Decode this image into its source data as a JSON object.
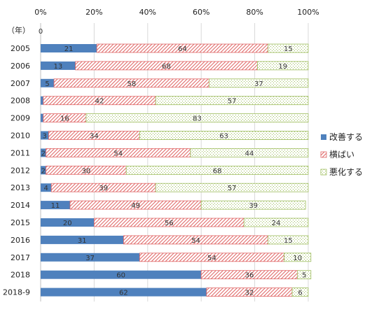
{
  "chart_data": {
    "type": "bar",
    "orientation": "horizontal",
    "stacked": "percent",
    "y_axis_header": "（年）",
    "x_tick_labels": [
      "0%",
      "20%",
      "40%",
      "60%",
      "80%",
      "100%"
    ],
    "xlim": [
      0,
      100
    ],
    "header_value": "0",
    "categories": [
      "2005",
      "2006",
      "2007",
      "2008",
      "2009",
      "2010",
      "2011",
      "2012",
      "2013",
      "2014",
      "2015",
      "2016",
      "2017",
      "2018",
      "2018-9"
    ],
    "series": [
      {
        "name": "改善する",
        "values": [
          21,
          13,
          5,
          1,
          1,
          3,
          2,
          2,
          4,
          11,
          20,
          31,
          37,
          60,
          62
        ],
        "pattern": "solid",
        "color": "#4f81bd"
      },
      {
        "name": "横ばい",
        "values": [
          64,
          68,
          58,
          42,
          16,
          34,
          54,
          30,
          39,
          49,
          56,
          54,
          54,
          36,
          32
        ],
        "pattern": "diagonal",
        "color": "#e06666"
      },
      {
        "name": "悪化する",
        "values": [
          15,
          19,
          37,
          57,
          83,
          63,
          44,
          68,
          57,
          39,
          24,
          15,
          10,
          5,
          6
        ],
        "pattern": "dots",
        "color": "#9bbb59"
      }
    ],
    "data_labels": [
      [
        "21",
        "13",
        "5",
        "",
        "",
        "3",
        "2",
        "2",
        "4",
        "11",
        "20",
        "31",
        "37",
        "60",
        "62"
      ],
      [
        "64",
        "68",
        "58",
        "42",
        "16",
        "34",
        "54",
        "30",
        "39",
        "49",
        "56",
        "54",
        "54",
        "36",
        "32"
      ],
      [
        "15",
        "19",
        "37",
        "57",
        "83",
        "63",
        "44",
        "68",
        "57",
        "39",
        "24",
        "15",
        "10",
        "5",
        "6"
      ]
    ],
    "legend_position": "right",
    "grid": true
  }
}
